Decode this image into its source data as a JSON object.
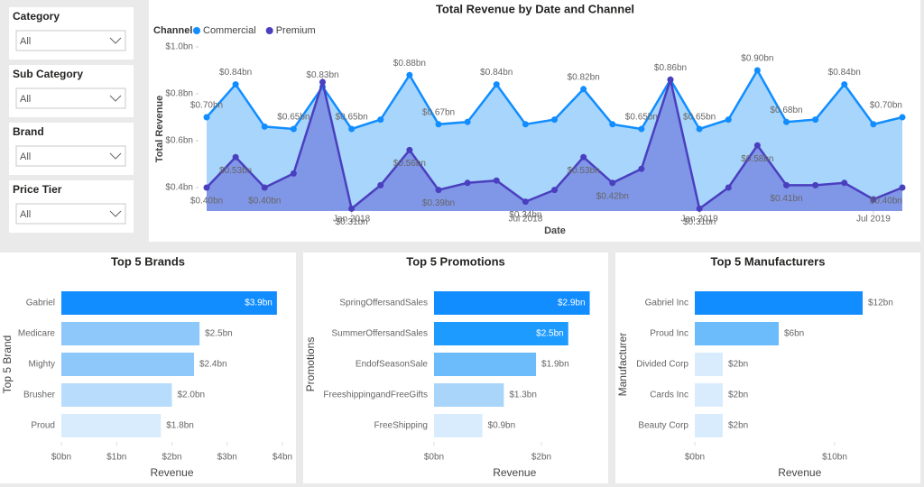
{
  "filters": [
    {
      "label": "Category",
      "value": "All"
    },
    {
      "label": "Sub Category",
      "value": "All"
    },
    {
      "label": "Brand",
      "value": "All"
    },
    {
      "label": "Price Tier",
      "value": "All"
    }
  ],
  "chart_data": [
    {
      "type": "area",
      "title": "Total Revenue by Date and Channel",
      "legend_title": "Channel",
      "legend": "top-left",
      "x_label": "Date",
      "y_label": "Total Revenue",
      "x": [
        "2017-08",
        "2017-09",
        "2017-10",
        "2017-11",
        "2017-12",
        "2018-01",
        "2018-02",
        "2018-03",
        "2018-04",
        "2018-05",
        "2018-06",
        "2018-07",
        "2018-08",
        "2018-09",
        "2018-10",
        "2018-11",
        "2018-12",
        "2019-01",
        "2019-02",
        "2019-03",
        "2019-04",
        "2019-05",
        "2019-06",
        "2019-07",
        "2019-08"
      ],
      "xticks": [
        {
          "value": "2018-01",
          "label": "Jan 2018"
        },
        {
          "value": "2018-07",
          "label": "Jul 2018"
        },
        {
          "value": "2019-01",
          "label": "Jan 2019"
        },
        {
          "value": "2019-07",
          "label": "Jul 2019"
        }
      ],
      "ylim": [
        0.3,
        1.0
      ],
      "yticks": [
        {
          "value": 0.4,
          "label": "$0.4bn"
        },
        {
          "value": 0.6,
          "label": "$0.6bn"
        },
        {
          "value": 0.8,
          "label": "$0.8bn"
        },
        {
          "value": 1.0,
          "label": "$1.0bn"
        }
      ],
      "series": [
        {
          "name": "Commercial",
          "color": "#118dff",
          "fill": "#9fd0fb",
          "values": [
            0.7,
            0.84,
            0.66,
            0.65,
            0.83,
            0.65,
            0.69,
            0.88,
            0.67,
            0.68,
            0.84,
            0.67,
            0.69,
            0.82,
            0.67,
            0.65,
            0.86,
            0.65,
            0.69,
            0.9,
            0.68,
            0.69,
            0.84,
            0.67,
            0.7
          ],
          "value_labels": [
            "$0.70bn",
            "$0.84bn",
            null,
            "$0.65bn",
            "$0.83bn",
            "$0.65bn",
            null,
            "$0.88bn",
            "$0.67bn",
            null,
            "$0.84bn",
            null,
            null,
            "$0.82bn",
            null,
            "$0.65bn",
            "$0.86bn",
            "$0.65bn",
            null,
            "$0.90bn",
            "$0.68bn",
            null,
            "$0.84bn",
            null,
            "$0.70bn"
          ]
        },
        {
          "name": "Premium",
          "color": "#4a3fbf",
          "fill": "#7b8fe3",
          "values": [
            0.4,
            0.53,
            0.4,
            0.46,
            0.85,
            0.31,
            0.41,
            0.56,
            0.39,
            0.42,
            0.43,
            0.34,
            0.39,
            0.53,
            0.42,
            0.48,
            0.86,
            0.31,
            0.4,
            0.58,
            0.41,
            0.41,
            0.42,
            0.35,
            0.4
          ],
          "value_labels": [
            "$0.40bn",
            "$0.53bn",
            "$0.40bn",
            null,
            null,
            "$0.31bn",
            null,
            "$0.56bn",
            "$0.39bn",
            null,
            null,
            "$0.34bn",
            null,
            "$0.53bn",
            "$0.42bn",
            null,
            null,
            "$0.31bn",
            null,
            "$0.58bn",
            "$0.41bn",
            null,
            null,
            null,
            "$0.40bn"
          ]
        }
      ]
    },
    {
      "type": "hbar",
      "title": "Top 5 Brands",
      "x_label": "Revenue",
      "y_label": "Top 5 Brand",
      "categories": [
        "Gabriel",
        "Medicare",
        "Mighty",
        "Brusher",
        "Proud"
      ],
      "values": [
        3.9,
        2.5,
        2.4,
        2.0,
        1.8
      ],
      "value_labels": [
        "$3.9bn",
        "$2.5bn",
        "$2.4bn",
        "$2.0bn",
        "$1.8bn"
      ],
      "colors": [
        "#118dff",
        "#8ec8fa",
        "#8ec8fa",
        "#b8dcfb",
        "#d9ecfd"
      ],
      "xlim": [
        0,
        4
      ],
      "xticks": [
        {
          "value": 0,
          "label": "$0bn"
        },
        {
          "value": 1,
          "label": "$1bn"
        },
        {
          "value": 2,
          "label": "$2bn"
        },
        {
          "value": 3,
          "label": "$3bn"
        },
        {
          "value": 4,
          "label": "$4bn"
        }
      ]
    },
    {
      "type": "hbar",
      "title": "Top 5 Promotions",
      "x_label": "Revenue",
      "y_label": "Promotions",
      "categories": [
        "SpringOffersandSales",
        "SummerOffersandSales",
        "EndofSeasonSale",
        "FreeshippingandFreeGifts",
        "FreeShipping"
      ],
      "values": [
        2.9,
        2.5,
        1.9,
        1.3,
        0.9
      ],
      "value_labels": [
        "$2.9bn",
        "$2.5bn",
        "$1.9bn",
        "$1.3bn",
        "$0.9bn"
      ],
      "colors": [
        "#118dff",
        "#1e9bff",
        "#6cbcfb",
        "#a9d5fb",
        "#d9ecfd"
      ],
      "xlim": [
        0,
        3
      ],
      "xticks": [
        {
          "value": 0,
          "label": "$0bn"
        },
        {
          "value": 2,
          "label": "$2bn"
        }
      ]
    },
    {
      "type": "hbar",
      "title": "Top 5 Manufacturers",
      "x_label": "Revenue",
      "y_label": "Manufacturer",
      "categories": [
        "Gabriel Inc",
        "Proud Inc",
        "Divided Corp",
        "Cards Inc",
        "Beauty Corp"
      ],
      "values": [
        12,
        6,
        2,
        2,
        2
      ],
      "value_labels": [
        "$12bn",
        "$6bn",
        "$2bn",
        "$2bn",
        "$2bn"
      ],
      "colors": [
        "#118dff",
        "#6cbcfb",
        "#d9ecfd",
        "#d9ecfd",
        "#d9ecfd"
      ],
      "xlim": [
        0,
        15
      ],
      "xticks": [
        {
          "value": 0,
          "label": "$0bn"
        },
        {
          "value": 10,
          "label": "$10bn"
        }
      ]
    }
  ]
}
